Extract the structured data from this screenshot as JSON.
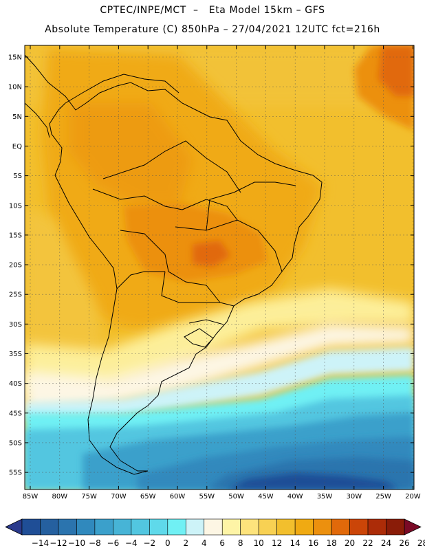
{
  "title_line1": "CPTEC/INPE/MCT  –   Eta Model 15km – GFS",
  "title_line2": "Absolute Temperature (C) 850hPa – 27/04/2021 12UTC fct=216h",
  "lat_labels": [
    "15N",
    "10N",
    "5N",
    "EQ",
    "5S",
    "10S",
    "15S",
    "20S",
    "25S",
    "30S",
    "35S",
    "40S",
    "45S",
    "50S",
    "55S"
  ],
  "lon_labels": [
    "85W",
    "80W",
    "75W",
    "70W",
    "65W",
    "60W",
    "55W",
    "50W",
    "45W",
    "40W",
    "35W",
    "30W",
    "25W",
    "20W"
  ],
  "colorbar": {
    "labels": [
      "−14",
      "−12",
      "−10",
      "−8",
      "−6",
      "−4",
      "−2",
      "0",
      "2",
      "4",
      "6",
      "8",
      "10",
      "12",
      "14",
      "16",
      "18",
      "20",
      "22",
      "24",
      "26",
      "28"
    ],
    "colors": [
      "#1f4e96",
      "#25609f",
      "#2b74ae",
      "#3089bd",
      "#3ba0cb",
      "#47b4d6",
      "#52c6e0",
      "#5fd9ea",
      "#70f0f4",
      "#cdf3f8",
      "#fdf6e4",
      "#fef4a6",
      "#fde37c",
      "#f8d153",
      "#f2bf2d",
      "#f0aa12",
      "#ec900e",
      "#e1690a",
      "#cb4508",
      "#ac2c08",
      "#8a1c08"
    ],
    "under_color": "#2a3a8c",
    "over_color": "#7a0a26"
  }
}
